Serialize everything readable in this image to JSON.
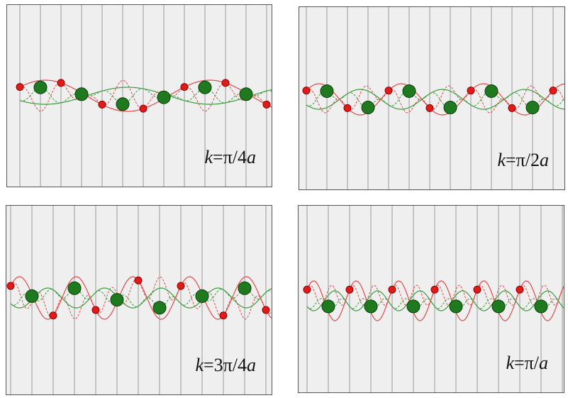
{
  "panels": [
    {
      "id": "p1",
      "label_var": "k",
      "label_value": "=π/4",
      "label_unit": "a",
      "phase": 0.25
    },
    {
      "id": "p2",
      "label_var": "k",
      "label_value": "=π/2",
      "label_unit": "a",
      "phase": 0.5
    },
    {
      "id": "p3",
      "label_var": "k",
      "label_value": "=3π/4",
      "label_unit": "a",
      "phase": 0.75
    },
    {
      "id": "p4",
      "label_var": "k",
      "label_value": "=π/",
      "label_unit": "a",
      "phase": 1.0
    }
  ],
  "colors": {
    "background": "#efefef",
    "grid_line": "#999999",
    "heavy_atom": "#1f7a1f",
    "heavy_atom_edge": "#0c3d0c",
    "light_atom": "#e21a1a",
    "light_atom_edge": "#8a0000",
    "green_wave": "#3d9e3d",
    "red_wave": "#e44a4a"
  }
}
